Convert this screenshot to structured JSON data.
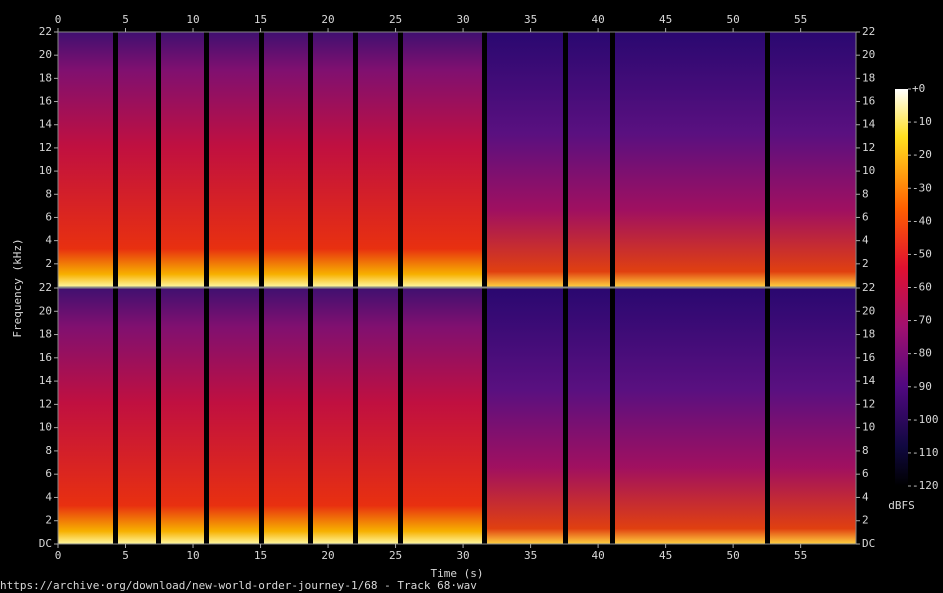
{
  "chart_data": [
    {
      "type": "spectrogram",
      "xlim": [
        0,
        59.1
      ],
      "ylim": [
        0,
        22
      ],
      "xticks": [
        0,
        5,
        10,
        15,
        20,
        25,
        30,
        35,
        40,
        45,
        50,
        55
      ],
      "xaxis_position": "top",
      "yticks": [
        2,
        4,
        6,
        8,
        10,
        12,
        14,
        16,
        18,
        20,
        22
      ]
    },
    {
      "type": "spectrogram",
      "xlim": [
        0,
        59.1
      ],
      "ylim": [
        0,
        22
      ],
      "xticks": [
        0,
        5,
        10,
        15,
        20,
        25,
        30,
        35,
        40,
        45,
        50,
        55
      ],
      "xaxis_position": "bottom",
      "yticks": [
        {
          "value": 0,
          "label": "DC"
        },
        2,
        4,
        6,
        8,
        10,
        12,
        14,
        16,
        18,
        20,
        22
      ],
      "x_label": "Time (s)"
    }
  ],
  "y_label": "Frequency (kHz)",
  "colorbar": {
    "lim": [
      -120,
      0
    ],
    "label": "dBFS",
    "ticks": [
      {
        "value": 0,
        "label": "+0"
      },
      -10,
      -20,
      -30,
      -40,
      -50,
      -60,
      -70,
      -80,
      -90,
      -100,
      -110,
      -120
    ]
  },
  "footer": "https://archive·org/download/new-world-order-journey-1/68 - Track 68·wav"
}
